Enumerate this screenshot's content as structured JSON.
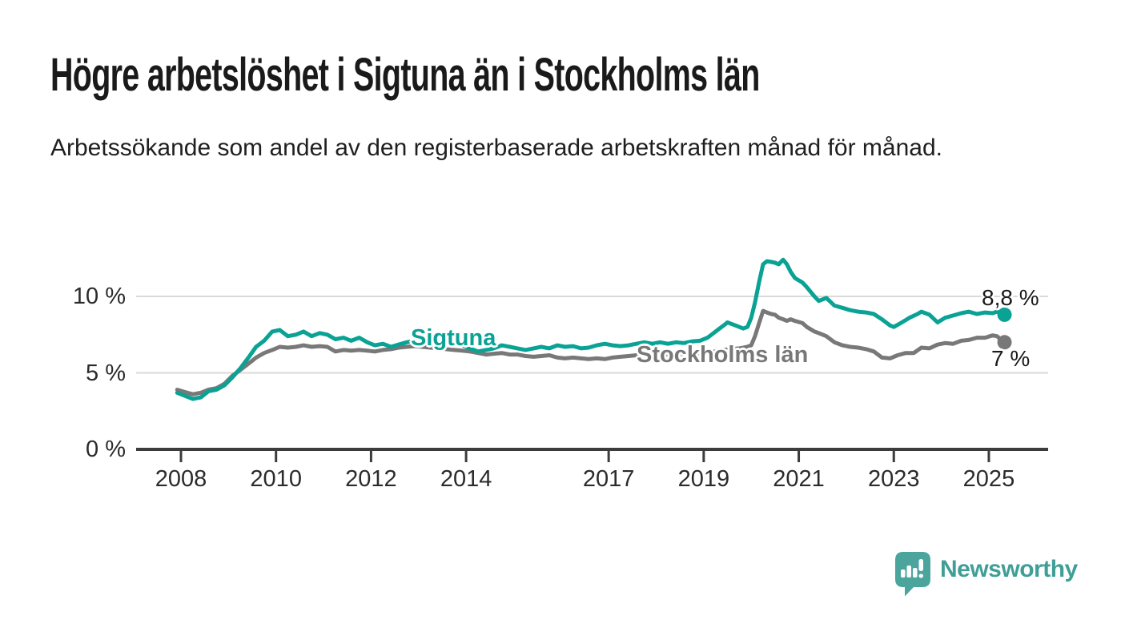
{
  "header": {
    "title": "Högre arbetslöshet i Sigtuna än i Stockholms län",
    "subtitle": "Arbetssökande som andel av den registerbaserade arbetskraften månad för månad."
  },
  "colors": {
    "accent_teal": "#0aa294",
    "series_gray": "#787878",
    "axis": "#3c3c3c",
    "gridline": "#dadada",
    "text_dark": "#1a1a1a",
    "brand_teal": "#4ba59d",
    "brand_text_teal": "#3f9f97"
  },
  "branding": {
    "logo_text": "Newsworthy",
    "logo_icon": "bar-chart-speech-bubble"
  },
  "chart_data": {
    "type": "line",
    "title": "Högre arbetslöshet i Sigtuna än i Stockholms län",
    "subtitle": "Arbetssökande som andel av den registerbaserade arbetskraften månad för månad.",
    "ylabel": "",
    "xlabel": "",
    "grid": "horizontal",
    "legend_position": "inline-labels",
    "x_axis": {
      "range": [
        2007.9,
        2026.2
      ],
      "ticks": [
        2008,
        2010,
        2012,
        2014,
        2017,
        2019,
        2021,
        2023,
        2025
      ],
      "tick_labels": [
        "2008",
        "2010",
        "2012",
        "2014",
        "2017",
        "2019",
        "2021",
        "2023",
        "2025"
      ]
    },
    "y_axis": {
      "range": [
        0,
        13
      ],
      "unit": "%",
      "ticks": [
        {
          "value": 0,
          "label": "0 %"
        },
        {
          "value": 5,
          "label": "5 %"
        },
        {
          "value": 10,
          "label": "10 %"
        }
      ]
    },
    "series": [
      {
        "name": "Stockholms län",
        "color": "#787878",
        "end_label": "7 %",
        "end_value": 7.0,
        "points": [
          [
            2007.92,
            3.9
          ],
          [
            2008.08,
            3.75
          ],
          [
            2008.25,
            3.6
          ],
          [
            2008.42,
            3.7
          ],
          [
            2008.58,
            3.9
          ],
          [
            2008.75,
            4.0
          ],
          [
            2008.92,
            4.3
          ],
          [
            2009.08,
            4.8
          ],
          [
            2009.25,
            5.2
          ],
          [
            2009.42,
            5.6
          ],
          [
            2009.58,
            6.0
          ],
          [
            2009.75,
            6.3
          ],
          [
            2009.92,
            6.5
          ],
          [
            2010.08,
            6.7
          ],
          [
            2010.25,
            6.65
          ],
          [
            2010.42,
            6.7
          ],
          [
            2010.58,
            6.8
          ],
          [
            2010.75,
            6.7
          ],
          [
            2010.92,
            6.75
          ],
          [
            2011.08,
            6.7
          ],
          [
            2011.25,
            6.4
          ],
          [
            2011.42,
            6.5
          ],
          [
            2011.58,
            6.45
          ],
          [
            2011.75,
            6.5
          ],
          [
            2011.92,
            6.45
          ],
          [
            2012.08,
            6.4
          ],
          [
            2012.25,
            6.5
          ],
          [
            2012.42,
            6.55
          ],
          [
            2012.58,
            6.65
          ],
          [
            2012.75,
            6.7
          ],
          [
            2012.92,
            6.75
          ],
          [
            2013.08,
            6.7
          ],
          [
            2013.25,
            6.65
          ],
          [
            2013.42,
            6.6
          ],
          [
            2013.58,
            6.55
          ],
          [
            2013.75,
            6.5
          ],
          [
            2013.92,
            6.45
          ],
          [
            2014.08,
            6.4
          ],
          [
            2014.25,
            6.3
          ],
          [
            2014.42,
            6.2
          ],
          [
            2014.58,
            6.25
          ],
          [
            2014.75,
            6.3
          ],
          [
            2014.92,
            6.2
          ],
          [
            2015.08,
            6.2
          ],
          [
            2015.25,
            6.1
          ],
          [
            2015.42,
            6.05
          ],
          [
            2015.58,
            6.1
          ],
          [
            2015.75,
            6.15
          ],
          [
            2015.92,
            6.0
          ],
          [
            2016.08,
            5.95
          ],
          [
            2016.25,
            6.0
          ],
          [
            2016.42,
            5.95
          ],
          [
            2016.58,
            5.9
          ],
          [
            2016.75,
            5.95
          ],
          [
            2016.92,
            5.9
          ],
          [
            2017.08,
            6.0
          ],
          [
            2017.25,
            6.05
          ],
          [
            2017.42,
            6.1
          ],
          [
            2017.58,
            6.15
          ],
          [
            2017.75,
            6.1
          ],
          [
            2017.92,
            6.1
          ],
          [
            2018.08,
            6.15
          ],
          [
            2018.25,
            6.2
          ],
          [
            2018.42,
            6.2
          ],
          [
            2018.58,
            6.25
          ],
          [
            2018.75,
            6.3
          ],
          [
            2018.92,
            6.3
          ],
          [
            2019.08,
            6.35
          ],
          [
            2019.25,
            6.4
          ],
          [
            2019.42,
            6.5
          ],
          [
            2019.58,
            6.55
          ],
          [
            2019.75,
            6.6
          ],
          [
            2019.92,
            6.7
          ],
          [
            2020.0,
            6.8
          ],
          [
            2020.08,
            7.4
          ],
          [
            2020.17,
            8.3
          ],
          [
            2020.25,
            9.05
          ],
          [
            2020.33,
            8.95
          ],
          [
            2020.42,
            8.85
          ],
          [
            2020.5,
            8.8
          ],
          [
            2020.58,
            8.6
          ],
          [
            2020.67,
            8.5
          ],
          [
            2020.75,
            8.4
          ],
          [
            2020.83,
            8.5
          ],
          [
            2020.92,
            8.4
          ],
          [
            2021.08,
            8.25
          ],
          [
            2021.17,
            8.0
          ],
          [
            2021.33,
            7.7
          ],
          [
            2021.42,
            7.6
          ],
          [
            2021.58,
            7.4
          ],
          [
            2021.75,
            7.0
          ],
          [
            2021.92,
            6.8
          ],
          [
            2022.08,
            6.7
          ],
          [
            2022.25,
            6.65
          ],
          [
            2022.42,
            6.55
          ],
          [
            2022.58,
            6.4
          ],
          [
            2022.75,
            6.0
          ],
          [
            2022.92,
            5.95
          ],
          [
            2023.08,
            6.15
          ],
          [
            2023.25,
            6.3
          ],
          [
            2023.42,
            6.3
          ],
          [
            2023.58,
            6.65
          ],
          [
            2023.75,
            6.6
          ],
          [
            2023.92,
            6.85
          ],
          [
            2024.08,
            6.95
          ],
          [
            2024.25,
            6.9
          ],
          [
            2024.42,
            7.1
          ],
          [
            2024.58,
            7.15
          ],
          [
            2024.75,
            7.3
          ],
          [
            2024.92,
            7.3
          ],
          [
            2025.08,
            7.45
          ],
          [
            2025.17,
            7.4
          ],
          [
            2025.33,
            7.0
          ]
        ]
      },
      {
        "name": "Sigtuna",
        "color": "#0aa294",
        "end_label": "8,8 %",
        "end_value": 8.8,
        "points": [
          [
            2007.92,
            3.7
          ],
          [
            2008.08,
            3.5
          ],
          [
            2008.25,
            3.3
          ],
          [
            2008.42,
            3.4
          ],
          [
            2008.58,
            3.8
          ],
          [
            2008.75,
            3.9
          ],
          [
            2008.92,
            4.2
          ],
          [
            2009.08,
            4.7
          ],
          [
            2009.25,
            5.3
          ],
          [
            2009.42,
            6.0
          ],
          [
            2009.58,
            6.7
          ],
          [
            2009.75,
            7.1
          ],
          [
            2009.92,
            7.7
          ],
          [
            2010.08,
            7.8
          ],
          [
            2010.25,
            7.4
          ],
          [
            2010.42,
            7.5
          ],
          [
            2010.58,
            7.7
          ],
          [
            2010.75,
            7.4
          ],
          [
            2010.92,
            7.6
          ],
          [
            2011.08,
            7.5
          ],
          [
            2011.25,
            7.2
          ],
          [
            2011.42,
            7.3
          ],
          [
            2011.58,
            7.1
          ],
          [
            2011.75,
            7.3
          ],
          [
            2011.92,
            7.0
          ],
          [
            2012.08,
            6.8
          ],
          [
            2012.25,
            6.9
          ],
          [
            2012.42,
            6.7
          ],
          [
            2012.58,
            6.85
          ],
          [
            2012.75,
            7.0
          ],
          [
            2012.92,
            7.1
          ],
          [
            2013.08,
            7.0
          ],
          [
            2013.25,
            7.1
          ],
          [
            2013.42,
            7.0
          ],
          [
            2013.58,
            7.1
          ],
          [
            2013.75,
            6.9
          ],
          [
            2013.92,
            6.8
          ],
          [
            2014.08,
            6.6
          ],
          [
            2014.25,
            6.4
          ],
          [
            2014.42,
            6.5
          ],
          [
            2014.58,
            6.6
          ],
          [
            2014.75,
            6.8
          ],
          [
            2014.92,
            6.7
          ],
          [
            2015.08,
            6.6
          ],
          [
            2015.25,
            6.5
          ],
          [
            2015.42,
            6.6
          ],
          [
            2015.58,
            6.7
          ],
          [
            2015.75,
            6.6
          ],
          [
            2015.92,
            6.8
          ],
          [
            2016.08,
            6.7
          ],
          [
            2016.25,
            6.75
          ],
          [
            2016.42,
            6.6
          ],
          [
            2016.58,
            6.65
          ],
          [
            2016.75,
            6.8
          ],
          [
            2016.92,
            6.9
          ],
          [
            2017.08,
            6.8
          ],
          [
            2017.25,
            6.75
          ],
          [
            2017.42,
            6.8
          ],
          [
            2017.58,
            6.9
          ],
          [
            2017.75,
            7.0
          ],
          [
            2017.92,
            6.9
          ],
          [
            2018.08,
            7.0
          ],
          [
            2018.25,
            6.9
          ],
          [
            2018.42,
            7.0
          ],
          [
            2018.58,
            6.95
          ],
          [
            2018.75,
            7.05
          ],
          [
            2018.92,
            7.1
          ],
          [
            2019.08,
            7.3
          ],
          [
            2019.25,
            7.7
          ],
          [
            2019.42,
            8.1
          ],
          [
            2019.5,
            8.3
          ],
          [
            2019.67,
            8.1
          ],
          [
            2019.83,
            7.9
          ],
          [
            2019.92,
            8.0
          ],
          [
            2020.0,
            8.6
          ],
          [
            2020.08,
            9.6
          ],
          [
            2020.17,
            11.0
          ],
          [
            2020.25,
            12.1
          ],
          [
            2020.33,
            12.3
          ],
          [
            2020.42,
            12.25
          ],
          [
            2020.5,
            12.2
          ],
          [
            2020.58,
            12.1
          ],
          [
            2020.67,
            12.4
          ],
          [
            2020.75,
            12.1
          ],
          [
            2020.83,
            11.6
          ],
          [
            2020.92,
            11.2
          ],
          [
            2021.08,
            10.9
          ],
          [
            2021.17,
            10.6
          ],
          [
            2021.33,
            10.0
          ],
          [
            2021.42,
            9.7
          ],
          [
            2021.58,
            9.9
          ],
          [
            2021.75,
            9.4
          ],
          [
            2021.92,
            9.25
          ],
          [
            2022.08,
            9.1
          ],
          [
            2022.25,
            9.0
          ],
          [
            2022.42,
            8.95
          ],
          [
            2022.58,
            8.85
          ],
          [
            2022.75,
            8.5
          ],
          [
            2022.92,
            8.1
          ],
          [
            2023.0,
            8.0
          ],
          [
            2023.17,
            8.3
          ],
          [
            2023.33,
            8.6
          ],
          [
            2023.5,
            8.85
          ],
          [
            2023.58,
            9.0
          ],
          [
            2023.75,
            8.8
          ],
          [
            2023.92,
            8.3
          ],
          [
            2024.08,
            8.6
          ],
          [
            2024.25,
            8.75
          ],
          [
            2024.42,
            8.9
          ],
          [
            2024.58,
            9.0
          ],
          [
            2024.75,
            8.85
          ],
          [
            2024.92,
            8.95
          ],
          [
            2025.08,
            8.9
          ],
          [
            2025.17,
            9.0
          ],
          [
            2025.33,
            8.8
          ]
        ]
      }
    ]
  }
}
